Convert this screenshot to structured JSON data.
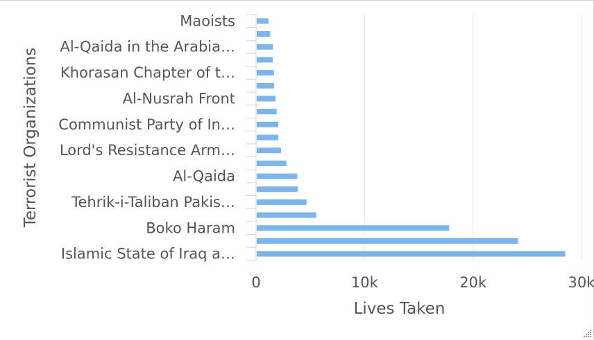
{
  "chart_data": {
    "type": "bar",
    "orientation": "horizontal",
    "ylabel": "Terrorist Organizations",
    "xlabel": "Lives Taken",
    "xlim": [
      0,
      30000
    ],
    "x_ticks": [
      "0",
      "10k",
      "20k",
      "30k"
    ],
    "grid": "vertical",
    "bar_color": "#7cb5ec",
    "categories": [
      "Maoists",
      "",
      "Al-Qaida in the Arabia…",
      "",
      "Khorasan Chapter of t…",
      "",
      "Al-Nusrah Front",
      "",
      "Communist Party of In…",
      "",
      "Lord's Resistance Arm…",
      "",
      "Al-Qaida",
      "",
      "Tehrik-i-Taliban Pakis…",
      "",
      "Boko Haram",
      "",
      "Islamic State of Iraq a…"
    ],
    "values": [
      1150,
      1300,
      1550,
      1550,
      1650,
      1650,
      1800,
      1900,
      2050,
      2050,
      2300,
      2800,
      3800,
      3850,
      4650,
      5550,
      17800,
      24150,
      28500
    ]
  }
}
